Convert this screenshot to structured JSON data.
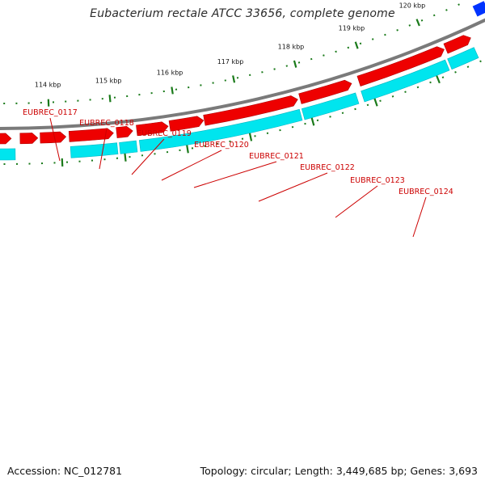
{
  "title": "Eubacterium rectale ATCC 33656, complete genome",
  "footer": {
    "accession": "Accession: NC_012781",
    "summary": "Topology: circular; Length: 3,449,685 bp; Genes: 3,693"
  },
  "colors": {
    "plus_strand": "#00e5ee",
    "minus_strand": "#ee0000",
    "backbone": "#7a7a7a",
    "ticks": "#1a7a1a",
    "label_text": "#cc0000",
    "gene_blue": "#0033ff"
  },
  "gene_labels": [
    "EUBREC_0117",
    "EUBREC_0118",
    "EUBREC_0119",
    "EUBREC_0120",
    "EUBREC_0121",
    "EUBREC_0122",
    "EUBREC_0123",
    "EUBREC_0124"
  ],
  "scale_labels": [
    "114 kbp",
    "115 kbp",
    "116 kbp",
    "117 kbp",
    "118 kbp",
    "119 kbp",
    "120 kbp"
  ]
}
